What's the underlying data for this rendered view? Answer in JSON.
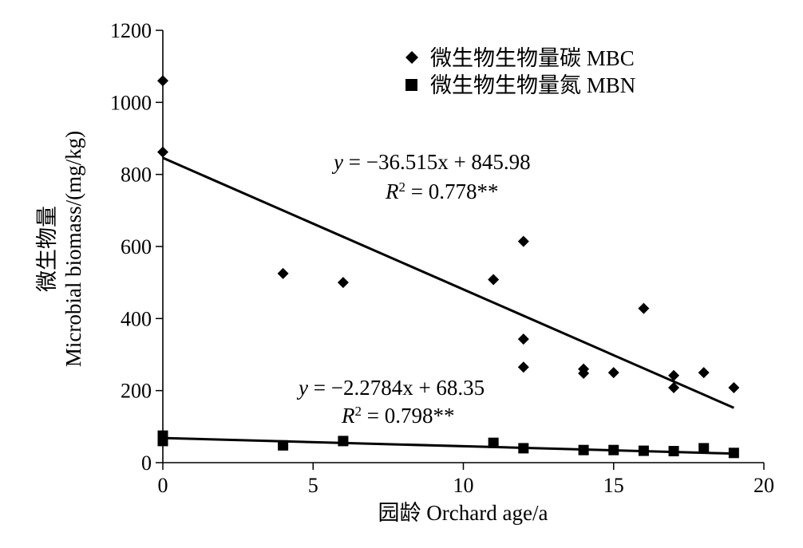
{
  "chart_data": {
    "type": "scatter",
    "xlabel": "园龄 Orchard age/a",
    "ylabel_line1": "微生物量",
    "ylabel_line2": "Microbial biomass/(mg/kg)",
    "xlim": [
      0,
      20
    ],
    "ylim": [
      0,
      1200
    ],
    "xticks": [
      0,
      5,
      10,
      15,
      20
    ],
    "yticks": [
      0,
      200,
      400,
      600,
      800,
      1000,
      1200
    ],
    "grid": false,
    "legend_position": "top-right",
    "series": [
      {
        "name": "微生物生物量碳 MBC",
        "marker": "diamond",
        "color": "#000000",
        "points": [
          [
            0,
            1060
          ],
          [
            0,
            862
          ],
          [
            4,
            525
          ],
          [
            6,
            500
          ],
          [
            11,
            508
          ],
          [
            12,
            614
          ],
          [
            12,
            343
          ],
          [
            12,
            265
          ],
          [
            14,
            260
          ],
          [
            14,
            248
          ],
          [
            15,
            250
          ],
          [
            16,
            428
          ],
          [
            17,
            242
          ],
          [
            17,
            208
          ],
          [
            18,
            250
          ],
          [
            19,
            208
          ]
        ],
        "trendline": {
          "slope": -36.515,
          "intercept": 845.98,
          "x_range": [
            0,
            19
          ],
          "equation_y": "y",
          "equation_rest": " = −36.515x + 845.98",
          "r2_r": "R",
          "r2_sup": "2",
          "r2_rest": " = 0.778**"
        }
      },
      {
        "name": "微生物生物量氮 MBN",
        "marker": "square",
        "color": "#000000",
        "points": [
          [
            0,
            75
          ],
          [
            0,
            60
          ],
          [
            4,
            48
          ],
          [
            6,
            60
          ],
          [
            11,
            55
          ],
          [
            12,
            40
          ],
          [
            14,
            35
          ],
          [
            15,
            35
          ],
          [
            16,
            33
          ],
          [
            17,
            32
          ],
          [
            18,
            40
          ],
          [
            19,
            27
          ]
        ],
        "trendline": {
          "slope": -2.2784,
          "intercept": 68.35,
          "x_range": [
            0,
            19
          ],
          "equation_y": "y",
          "equation_rest": " = −2.2784x + 68.35",
          "r2_r": "R",
          "r2_sup": "2",
          "r2_rest": " = 0.798**"
        }
      }
    ]
  }
}
